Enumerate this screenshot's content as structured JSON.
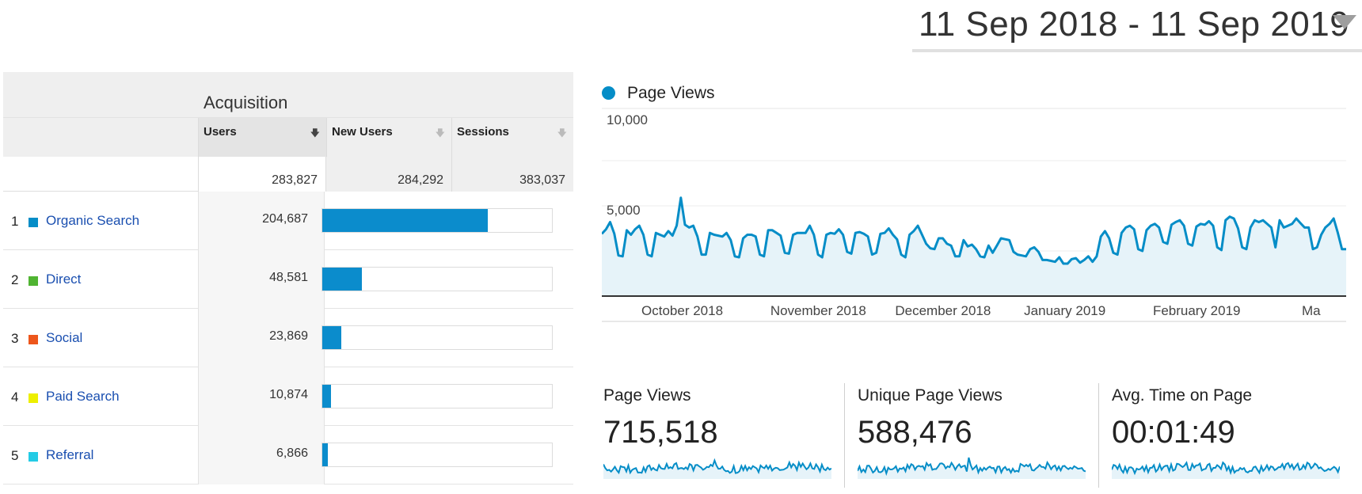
{
  "date_range": {
    "label": "11 Sep 2018 - 11 Sep 2019"
  },
  "acquisition": {
    "title": "Acquisition",
    "columns": {
      "users": "Users",
      "new_users": "New Users",
      "sessions": "Sessions"
    },
    "totals": {
      "users": "283,827",
      "new_users": "284,292",
      "sessions": "383,037"
    },
    "rows": [
      {
        "index": "1",
        "channel": "Organic Search",
        "users": "204,687",
        "share": 0.72,
        "color": "#058dc7"
      },
      {
        "index": "2",
        "channel": "Direct",
        "users": "48,581",
        "share": 0.171,
        "color": "#50b432"
      },
      {
        "index": "3",
        "channel": "Social",
        "users": "23,869",
        "share": 0.084,
        "color": "#ed561b"
      },
      {
        "index": "4",
        "channel": "Paid Search",
        "users": "10,874",
        "share": 0.038,
        "color": "#edef00"
      },
      {
        "index": "5",
        "channel": "Referral",
        "users": "6,866",
        "share": 0.024,
        "color": "#24cbe5"
      }
    ]
  },
  "colors": {
    "accent": "#058dc7",
    "bar": "#0b8ccc",
    "link": "#1a4fb0"
  },
  "chart_data": {
    "type": "area",
    "series": [
      {
        "name": "Page Views",
        "values": [
          3450,
          3700,
          4100,
          3450,
          2250,
          2200,
          3650,
          3400,
          3700,
          3900,
          3400,
          2300,
          2200,
          3500,
          3400,
          3300,
          3600,
          3350,
          3900,
          5450,
          3950,
          3800,
          3900,
          3300,
          2300,
          2300,
          3500,
          3400,
          3350,
          3300,
          3500,
          3100,
          2200,
          2150,
          3200,
          3400,
          3400,
          3300,
          2300,
          2200,
          3650,
          3650,
          3500,
          3350,
          2400,
          2350,
          3400,
          3500,
          3500,
          3500,
          3900,
          3400,
          2300,
          2150,
          3400,
          3500,
          3450,
          3700,
          3400,
          2450,
          2350,
          3500,
          3550,
          3450,
          3300,
          2300,
          2400,
          3450,
          3500,
          3750,
          3400,
          3150,
          2300,
          2150,
          3400,
          3600,
          3900,
          3400,
          2900,
          2650,
          2600,
          3200,
          3200,
          2900,
          2800,
          2200,
          2200,
          3100,
          2750,
          2850,
          2600,
          2200,
          2150,
          2800,
          2400,
          2800,
          3200,
          3150,
          3100,
          2450,
          2300,
          2250,
          2200,
          2600,
          2700,
          2450,
          2000,
          2000,
          1950,
          1900,
          2150,
          1800,
          1800,
          2050,
          2100,
          1850,
          2000,
          2200,
          1900,
          2200,
          3300,
          3600,
          3200,
          2400,
          2300,
          3500,
          3800,
          3900,
          3700,
          2600,
          2500,
          3650,
          3900,
          4000,
          3800,
          3000,
          2900,
          3950,
          4100,
          4200,
          3900,
          2900,
          2800,
          3850,
          4000,
          3950,
          4150,
          3900,
          2700,
          2550,
          4200,
          4400,
          4300,
          3750,
          2700,
          2600,
          3800,
          4200,
          4100,
          4200,
          4000,
          3800,
          2700,
          4200,
          3800,
          3900,
          4000,
          4300,
          4050,
          3800,
          3800,
          2600,
          2700,
          3400,
          3800,
          4000,
          4300,
          3500,
          2600,
          2600
        ]
      }
    ],
    "x_tick_labels": [
      "October 2018",
      "November 2018",
      "December 2018",
      "January 2019",
      "February 2019",
      "Ma"
    ],
    "y_tick_labels": [
      "10,000",
      "5,000"
    ],
    "ylim": [
      0,
      10000
    ],
    "grid": true
  },
  "scorecards": [
    {
      "label": "Page Views",
      "value": "715,518"
    },
    {
      "label": "Unique Page Views",
      "value": "588,476"
    },
    {
      "label": "Avg. Time on Page",
      "value": "00:01:49"
    }
  ]
}
